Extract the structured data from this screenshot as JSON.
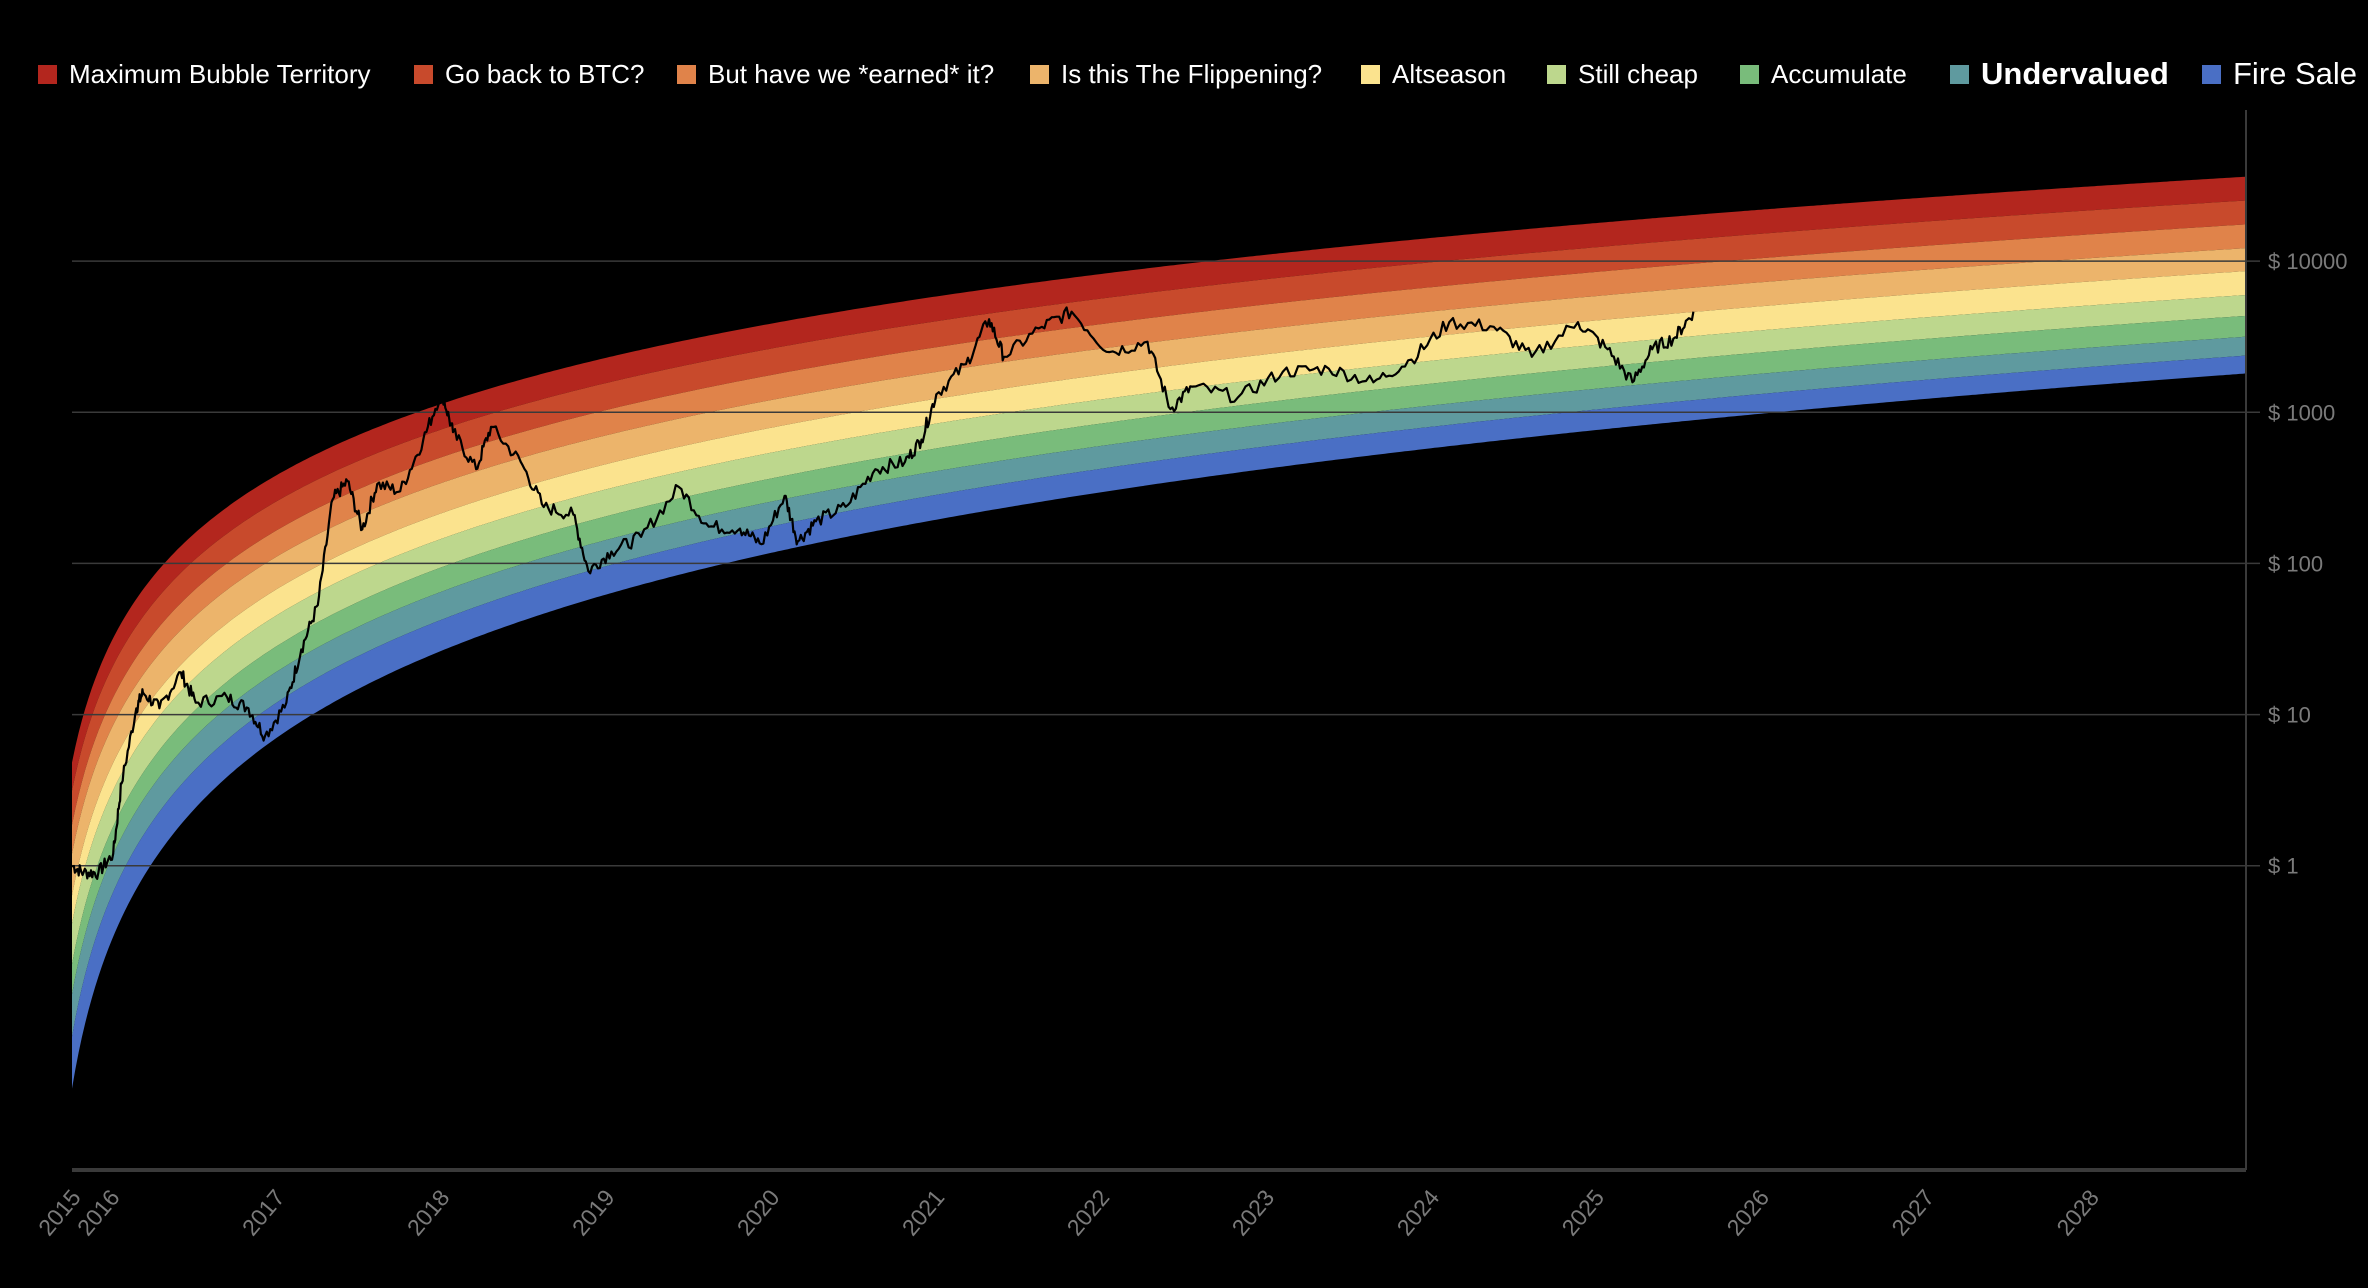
{
  "legend": [
    {
      "label": "Maximum Bubble Territory",
      "color": "#b3261e"
    },
    {
      "label": "Go back to BTC?",
      "color": "#c84a2c"
    },
    {
      "label": "But have we *earned* it?",
      "color": "#e0834a"
    },
    {
      "label": "Is this The Flippening?",
      "color": "#ecb46b"
    },
    {
      "label": "Altseason",
      "color": "#fbe38e"
    },
    {
      "label": "Still cheap",
      "color": "#bdd78d"
    },
    {
      "label": "Accumulate",
      "color": "#79bc7b"
    },
    {
      "label": "Undervalued",
      "color": "#5f9a9f",
      "emphasis": "bold"
    },
    {
      "label": "Fire Sale",
      "color": "#4a6fc5"
    }
  ],
  "chart_data": {
    "type": "area",
    "xlabel": "",
    "ylabel": "",
    "y_scale": "log",
    "xlim": [
      2015.74,
      2028.92
    ],
    "ylim": [
      0.01,
      100000
    ],
    "grid": "horizontal",
    "legend_position": "top",
    "x_ticks": [
      {
        "value": 2015.74,
        "label": "2015"
      },
      {
        "value": 2016,
        "label": "2016"
      },
      {
        "value": 2017,
        "label": "2017"
      },
      {
        "value": 2018,
        "label": "2018"
      },
      {
        "value": 2019,
        "label": "2019"
      },
      {
        "value": 2020,
        "label": "2020"
      },
      {
        "value": 2021,
        "label": "2021"
      },
      {
        "value": 2022,
        "label": "2022"
      },
      {
        "value": 2023,
        "label": "2023"
      },
      {
        "value": 2024,
        "label": "2024"
      },
      {
        "value": 2025,
        "label": "2025"
      },
      {
        "value": 2026,
        "label": "2026"
      },
      {
        "value": 2027,
        "label": "2027"
      },
      {
        "value": 2028,
        "label": "2028"
      }
    ],
    "y_ticks": [
      {
        "value": 10000,
        "label": "$ 10000"
      },
      {
        "value": 1000,
        "label": "$ 1000"
      },
      {
        "value": 100,
        "label": "$ 100"
      },
      {
        "value": 10,
        "label": "$ 10"
      },
      {
        "value": 1,
        "label": "$ 1"
      }
    ],
    "band_edges": {
      "x": [
        2020.88,
        2028.92
      ],
      "prices_top_to_bottom": [
        [
          5623,
          36200
        ],
        [
          3855,
          25180
        ],
        [
          2594,
          17500
        ],
        [
          1778,
          12190
        ],
        [
          1180,
          8590
        ],
        [
          809,
          5970
        ],
        [
          553,
          4345
        ],
        [
          391,
          3162
        ],
        [
          272,
          2371
        ],
        [
          186,
          1807
        ]
      ]
    },
    "price_series": {
      "color": "#000000",
      "x": [
        2015.74,
        2015.81,
        2015.9,
        2015.99,
        2016.04,
        2016.13,
        2016.17,
        2016.27,
        2016.4,
        2016.49,
        2016.68,
        2016.81,
        2016.91,
        2017.04,
        2017.13,
        2017.23,
        2017.32,
        2017.41,
        2017.5,
        2017.59,
        2017.73,
        2017.87,
        2017.98,
        2018.05,
        2018.19,
        2018.28,
        2018.46,
        2018.6,
        2018.78,
        2018.87,
        2019.01,
        2019.19,
        2019.42,
        2019.6,
        2019.79,
        2019.92,
        2020.06,
        2020.14,
        2020.25,
        2020.43,
        2020.61,
        2020.79,
        2020.89,
        2020.98,
        2021.16,
        2021.3,
        2021.39,
        2021.62,
        2021.8,
        2022.03,
        2022.26,
        2022.4,
        2022.53,
        2022.81,
        2023.08,
        2023.36,
        2023.63,
        2023.86,
        2024.09,
        2024.36,
        2024.59,
        2024.87,
        2025.05,
        2025.2,
        2025.32,
        2025.46,
        2025.57
      ],
      "y": [
        1.0,
        0.9,
        0.9,
        1.2,
        3.5,
        11,
        14,
        11,
        19,
        12,
        13,
        11,
        7.2,
        12,
        27,
        53,
        265,
        350,
        168,
        335,
        300,
        660,
        1375,
        740,
        420,
        800,
        470,
        236,
        210,
        89,
        120,
        150,
        320,
        175,
        170,
        134,
        280,
        140,
        190,
        237,
        420,
        470,
        660,
        1315,
        2080,
        4130,
        2330,
        3680,
        4630,
        2500,
        2930,
        1050,
        1480,
        1260,
        1850,
        1940,
        1580,
        2230,
        3950,
        3680,
        2330,
        3950,
        2610,
        1580,
        2610,
        3140,
        4630
      ]
    }
  }
}
